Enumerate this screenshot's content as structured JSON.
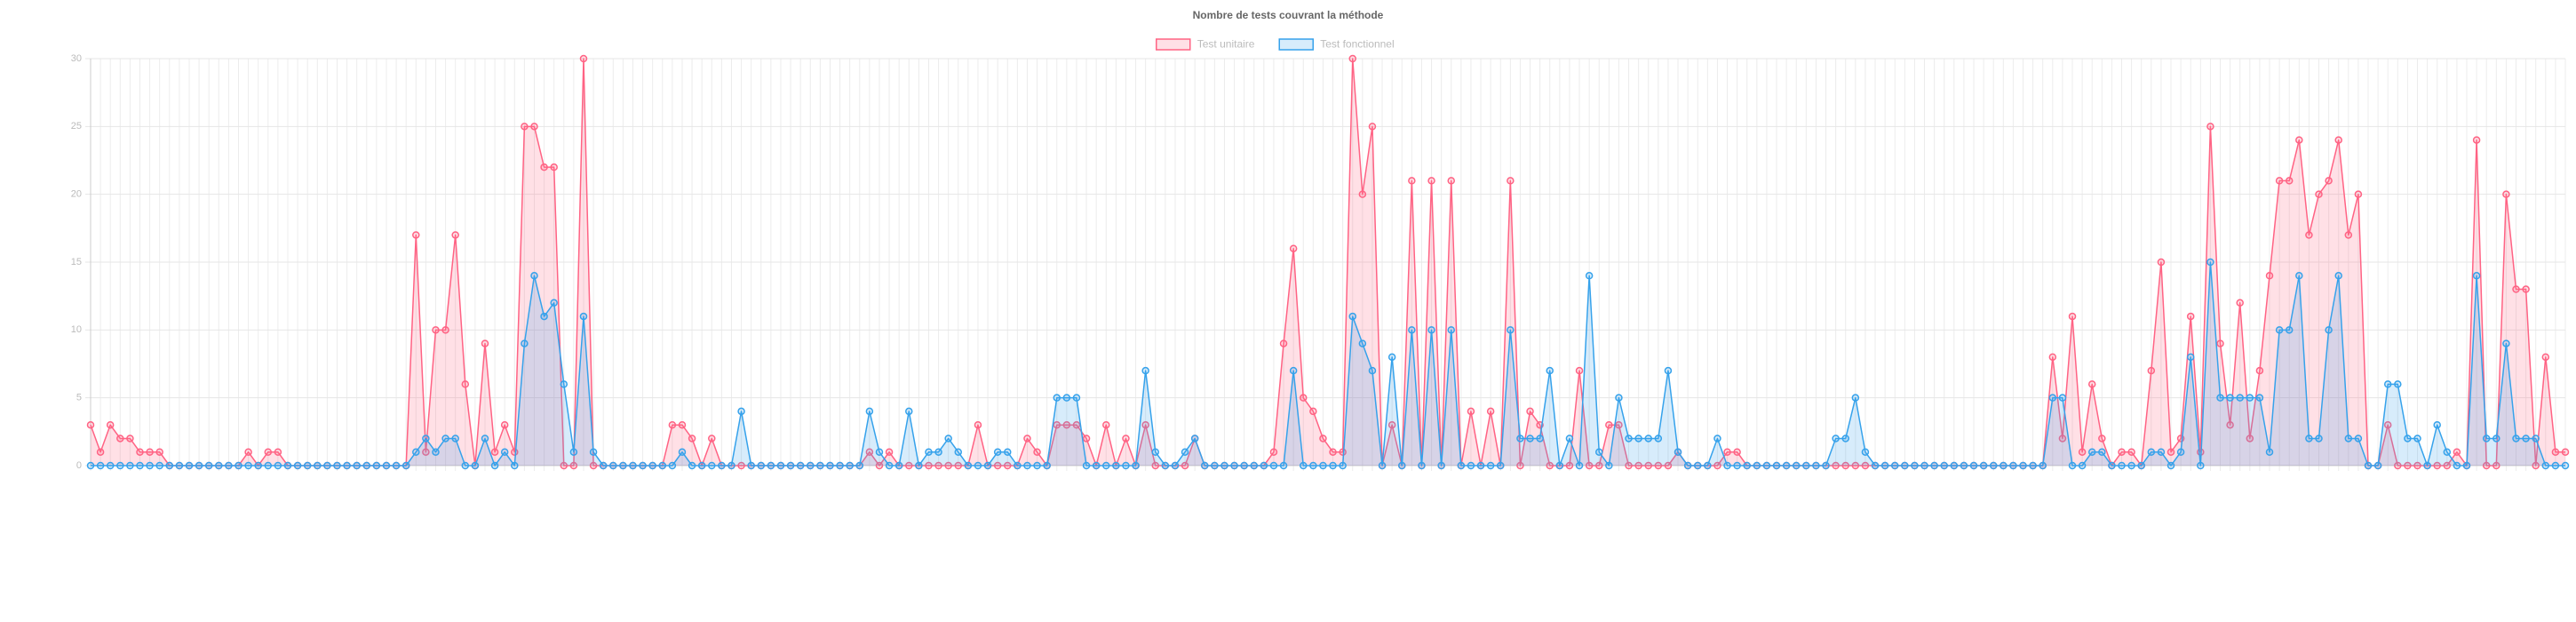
{
  "chart_data": {
    "type": "area",
    "title": "Nombre de tests couvrant la méthode",
    "categories": [
      null,
      null,
      null,
      null,
      null,
      null,
      null,
      null,
      null,
      null,
      null,
      null,
      null,
      null,
      null,
      null,
      null,
      null,
      null,
      null,
      null,
      null,
      null,
      null,
      null,
      null,
      null,
      null,
      null,
      null,
      null,
      null,
      null,
      null,
      null,
      null,
      null,
      null,
      null,
      null,
      null,
      null,
      null,
      null,
      null,
      null,
      null,
      null,
      null,
      null,
      null,
      null,
      null,
      null,
      null,
      null,
      null,
      null,
      null,
      null,
      null,
      null,
      null,
      null,
      null,
      null,
      null,
      null,
      null,
      null,
      null,
      null,
      null,
      null,
      null,
      null,
      null,
      null,
      null,
      null,
      null,
      null,
      null,
      null,
      null,
      null,
      null,
      null,
      null,
      null,
      null,
      null,
      null,
      null,
      null,
      null,
      null,
      null,
      null,
      null,
      null,
      null,
      null,
      null,
      null,
      null,
      null,
      null,
      null,
      null,
      null,
      null,
      null,
      null,
      null,
      null,
      null,
      null,
      null,
      null,
      null,
      null,
      null,
      null,
      null,
      null,
      null,
      null,
      null,
      null,
      null,
      null,
      null,
      null,
      null,
      null,
      null,
      null,
      null,
      null,
      null,
      null,
      null,
      null,
      null,
      null,
      null,
      null,
      null,
      null,
      null,
      null,
      null,
      null,
      null,
      null,
      null,
      null,
      null,
      null,
      null,
      null,
      null,
      null,
      null,
      null,
      null,
      null,
      null,
      null,
      null,
      null,
      null,
      null,
      null,
      null,
      null,
      null,
      null,
      null,
      null,
      null,
      null,
      null,
      null,
      null,
      null,
      null,
      null,
      null,
      null,
      null,
      null,
      null,
      null,
      null,
      null,
      null,
      null,
      null,
      null,
      null,
      null,
      null,
      null,
      null,
      null,
      null,
      null,
      null,
      null,
      null,
      null,
      null,
      null,
      null,
      null,
      null,
      null,
      null,
      null,
      null,
      null,
      null,
      null,
      null,
      null,
      null,
      null,
      null,
      null,
      null,
      null,
      null,
      null,
      null,
      null,
      null,
      null,
      null,
      null,
      null,
      null,
      null,
      null,
      null,
      null,
      null,
      null,
      null,
      null,
      null
    ],
    "series": [
      {
        "name": "Test unitaire",
        "color": "#ff6384",
        "values": [
          3,
          1,
          3,
          2,
          2,
          1,
          1,
          1,
          0,
          0,
          0,
          0,
          0,
          0,
          0,
          0,
          1,
          0,
          1,
          1,
          0,
          0,
          0,
          0,
          0,
          0,
          0,
          0,
          0,
          0,
          0,
          0,
          0,
          17,
          1,
          10,
          10,
          17,
          6,
          0,
          9,
          1,
          3,
          1,
          25,
          25,
          22,
          22,
          0,
          0,
          30,
          0,
          0,
          0,
          0,
          0,
          0,
          0,
          0,
          3,
          3,
          2,
          0,
          2,
          0,
          0,
          0,
          0,
          0,
          0,
          0,
          0,
          0,
          0,
          0,
          0,
          0,
          0,
          0,
          1,
          0,
          1,
          0,
          0,
          0,
          0,
          0,
          0,
          0,
          0,
          3,
          0,
          0,
          0,
          0,
          2,
          1,
          0,
          3,
          3,
          3,
          2,
          0,
          3,
          0,
          2,
          0,
          3,
          0,
          0,
          0,
          0,
          2,
          0,
          0,
          0,
          0,
          0,
          0,
          0,
          1,
          9,
          16,
          5,
          4,
          2,
          1,
          1,
          30,
          20,
          25,
          0,
          3,
          0,
          21,
          0,
          21,
          0,
          21,
          0,
          4,
          0,
          4,
          0,
          21,
          0,
          4,
          3,
          0,
          0,
          0,
          7,
          0,
          0,
          3,
          3,
          0,
          0,
          0,
          0,
          0,
          1,
          0,
          0,
          0,
          0,
          1,
          1,
          0,
          0,
          0,
          0,
          0,
          0,
          0,
          0,
          0,
          0,
          0,
          0,
          0,
          0,
          0,
          0,
          0,
          0,
          0,
          0,
          0,
          0,
          0,
          0,
          0,
          0,
          0,
          0,
          0,
          0,
          0,
          8,
          2,
          11,
          1,
          6,
          2,
          0,
          1,
          1,
          0,
          7,
          15,
          1,
          2,
          11,
          1,
          25,
          9,
          3,
          12,
          2,
          7,
          14,
          21,
          21,
          24,
          17,
          20,
          21,
          24,
          17,
          20,
          0,
          0,
          3,
          0,
          0,
          0,
          0,
          0,
          0,
          1,
          0,
          24,
          0,
          0,
          20,
          13,
          13,
          0,
          8,
          1,
          1
        ]
      },
      {
        "name": "Test fonctionnel",
        "color": "#36a2eb",
        "values": [
          0,
          0,
          0,
          0,
          0,
          0,
          0,
          0,
          0,
          0,
          0,
          0,
          0,
          0,
          0,
          0,
          0,
          0,
          0,
          0,
          0,
          0,
          0,
          0,
          0,
          0,
          0,
          0,
          0,
          0,
          0,
          0,
          0,
          1,
          2,
          1,
          2,
          2,
          0,
          0,
          2,
          0,
          1,
          0,
          9,
          14,
          11,
          12,
          6,
          1,
          11,
          1,
          0,
          0,
          0,
          0,
          0,
          0,
          0,
          0,
          1,
          0,
          0,
          0,
          0,
          0,
          4,
          0,
          0,
          0,
          0,
          0,
          0,
          0,
          0,
          0,
          0,
          0,
          0,
          4,
          1,
          0,
          0,
          4,
          0,
          1,
          1,
          2,
          1,
          0,
          0,
          0,
          1,
          1,
          0,
          0,
          0,
          0,
          5,
          5,
          5,
          0,
          0,
          0,
          0,
          0,
          0,
          7,
          1,
          0,
          0,
          1,
          2,
          0,
          0,
          0,
          0,
          0,
          0,
          0,
          0,
          0,
          7,
          0,
          0,
          0,
          0,
          0,
          11,
          9,
          7,
          0,
          8,
          0,
          10,
          0,
          10,
          0,
          10,
          0,
          0,
          0,
          0,
          0,
          10,
          2,
          2,
          2,
          7,
          0,
          2,
          0,
          14,
          1,
          0,
          5,
          2,
          2,
          2,
          2,
          7,
          1,
          0,
          0,
          0,
          2,
          0,
          0,
          0,
          0,
          0,
          0,
          0,
          0,
          0,
          0,
          0,
          2,
          2,
          5,
          1,
          0,
          0,
          0,
          0,
          0,
          0,
          0,
          0,
          0,
          0,
          0,
          0,
          0,
          0,
          0,
          0,
          0,
          0,
          5,
          5,
          0,
          0,
          1,
          1,
          0,
          0,
          0,
          0,
          1,
          1,
          0,
          1,
          8,
          0,
          15,
          5,
          5,
          5,
          5,
          5,
          1,
          10,
          10,
          14,
          2,
          2,
          10,
          14,
          2,
          2,
          0,
          0,
          6,
          6,
          2,
          2,
          0,
          3,
          1,
          0,
          0,
          14,
          2,
          2,
          9,
          2,
          2,
          2,
          0,
          0,
          0
        ]
      }
    ],
    "ylim": [
      0,
      30
    ],
    "yticks": [
      0,
      5,
      10,
      15,
      20,
      25,
      30
    ],
    "grid": true,
    "legend": "top"
  }
}
